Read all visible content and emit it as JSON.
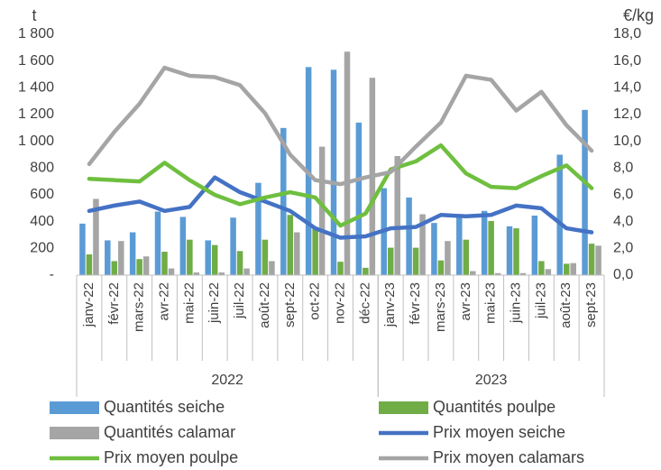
{
  "chart_data": {
    "type": "bar-line",
    "y_unit": "t",
    "y2_unit": "€/kg",
    "category_groups": [
      {
        "label": "2022",
        "categories": [
          "janv-22",
          "févr-22",
          "mars-22",
          "avr-22",
          "mai-22",
          "juin-22",
          "juil-22",
          "août-22",
          "sept-22",
          "oct-22",
          "nov-22",
          "déc-22"
        ]
      },
      {
        "label": "2023",
        "categories": [
          "janv-23",
          "févr-23",
          "mars-23",
          "avr-23",
          "mai-23",
          "juin-23",
          "juil-23",
          "août-23",
          "sept-23"
        ]
      }
    ],
    "series": [
      {
        "name": "Quantités seiche",
        "kind": "bar",
        "color": "#5b9bd5",
        "values": [
          385,
          260,
          320,
          475,
          435,
          260,
          430,
          690,
          1100,
          1555,
          1535,
          1140,
          650,
          580,
          390,
          450,
          480,
          365,
          445,
          900,
          1235
        ]
      },
      {
        "name": "Quantités poulpe",
        "kind": "bar",
        "color": "#70ad47",
        "values": [
          155,
          105,
          120,
          175,
          265,
          225,
          180,
          265,
          450,
          360,
          100,
          55,
          205,
          205,
          110,
          265,
          405,
          350,
          105,
          85,
          235
        ]
      },
      {
        "name": "Quantités calamar",
        "kind": "bar",
        "color": "#a5a5a5",
        "values": [
          570,
          255,
          140,
          50,
          20,
          20,
          50,
          105,
          320,
          960,
          1670,
          1475,
          890,
          455,
          255,
          30,
          15,
          15,
          45,
          90,
          220
        ]
      },
      {
        "name": "Prix moyen seiche",
        "kind": "line",
        "axis": "y2",
        "color": "#4472c4",
        "values": [
          4.8,
          5.2,
          5.5,
          4.8,
          5.1,
          7.3,
          6.2,
          5.5,
          4.8,
          3.5,
          2.8,
          2.9,
          3.5,
          3.6,
          4.5,
          4.4,
          4.5,
          5.2,
          5.0,
          3.5,
          3.2
        ]
      },
      {
        "name": "Prix moyen poulpe",
        "kind": "line",
        "axis": "y2",
        "color": "#6fbf3f",
        "values": [
          7.2,
          7.1,
          7.0,
          8.4,
          7.1,
          6.0,
          5.3,
          5.8,
          6.2,
          5.8,
          3.7,
          4.6,
          7.9,
          8.5,
          9.7,
          7.6,
          6.6,
          6.5,
          7.4,
          8.2,
          6.5
        ]
      },
      {
        "name": "Prix moyen calamars",
        "kind": "line",
        "axis": "y2",
        "color": "#a5a5a5",
        "values": [
          8.3,
          10.7,
          12.8,
          15.5,
          14.9,
          14.8,
          14.2,
          12.1,
          9.0,
          7.1,
          6.8,
          7.3,
          7.7,
          9.6,
          11.4,
          14.9,
          14.6,
          12.3,
          13.7,
          11.2,
          9.3
        ]
      }
    ],
    "ylim": [
      0,
      1800
    ],
    "yticks": [
      {
        "value": 0,
        "label": "-"
      },
      200,
      400,
      600,
      800,
      {
        "value": 1000,
        "label": "1 000"
      },
      {
        "value": 1200,
        "label": "1 200"
      },
      {
        "value": 1400,
        "label": "1 400"
      },
      {
        "value": 1600,
        "label": "1 600"
      },
      {
        "value": 1800,
        "label": "1 800"
      }
    ],
    "y2lim": [
      0,
      18
    ],
    "y2ticks": [
      {
        "value": 0,
        "label": "0,0"
      },
      {
        "value": 2,
        "label": "2,0"
      },
      {
        "value": 4,
        "label": "4,0"
      },
      {
        "value": 6,
        "label": "6,0"
      },
      {
        "value": 8,
        "label": "8,0"
      },
      {
        "value": 10,
        "label": "10,0"
      },
      {
        "value": 12,
        "label": "12,0"
      },
      {
        "value": 14,
        "label": "14,0"
      },
      {
        "value": 16,
        "label": "16,0"
      },
      {
        "value": 18,
        "label": "18,0"
      }
    ],
    "legend": "bottom"
  }
}
